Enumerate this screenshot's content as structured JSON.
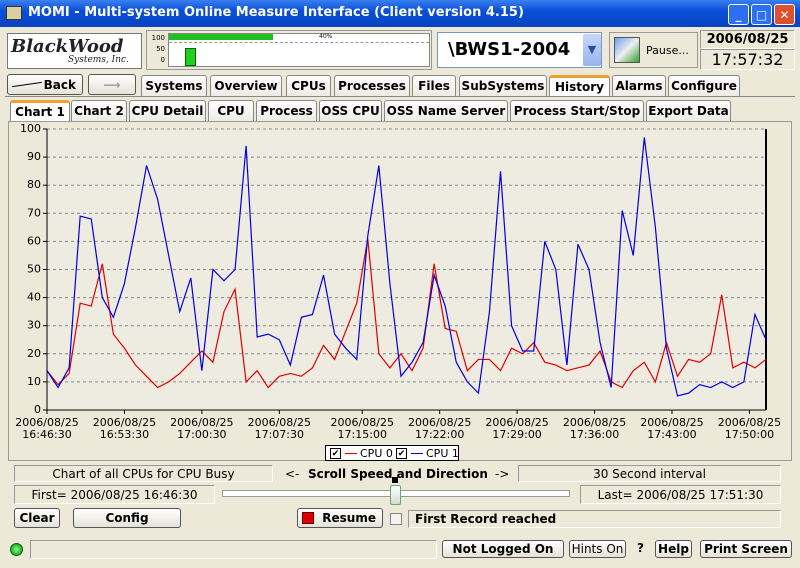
{
  "window": {
    "title": "MOMI - Multi-system Online Measure Interface (Client version 4.15)"
  },
  "header": {
    "logo": {
      "name": "BlackWood",
      "subtitle": "Systems, Inc."
    },
    "gauge": {
      "labels": [
        "100",
        "50",
        "0"
      ],
      "percent": "40%"
    },
    "node": "\\BWS1-2004",
    "pause": "Pause...",
    "date": "2006/08/25",
    "time": "17:57:32"
  },
  "nav": {
    "back": "Back",
    "tabs": [
      "Systems",
      "Overview",
      "CPUs",
      "Processes",
      "Files",
      "SubSystems",
      "History",
      "Alarms",
      "Configure"
    ],
    "active_tab": "History"
  },
  "subtabs": {
    "items": [
      "Chart 1",
      "Chart 2",
      "CPU Detail",
      "CPU",
      "Process",
      "OSS CPU",
      "OSS Name Server",
      "Process Start/Stop",
      "Export Data"
    ],
    "active": "Chart 1"
  },
  "chart_data": {
    "type": "line",
    "x": [
      "16:46:30",
      "16:47:30",
      "16:48:30",
      "16:49:30",
      "16:50:30",
      "16:51:30",
      "16:52:30",
      "16:53:30",
      "16:54:30",
      "16:55:30",
      "16:56:30",
      "16:57:30",
      "16:58:30",
      "16:59:30",
      "17:00:30",
      "17:01:30",
      "17:02:30",
      "17:03:30",
      "17:04:30",
      "17:05:30",
      "17:06:30",
      "17:07:30",
      "17:08:30",
      "17:09:30",
      "17:10:30",
      "17:11:30",
      "17:12:30",
      "17:13:30",
      "17:14:30",
      "17:15:30",
      "17:16:30",
      "17:17:30",
      "17:18:30",
      "17:19:30",
      "17:20:30",
      "17:21:30",
      "17:22:30",
      "17:23:30",
      "17:24:30",
      "17:25:30",
      "17:26:30",
      "17:27:30",
      "17:28:30",
      "17:29:30",
      "17:30:30",
      "17:31:30",
      "17:32:30",
      "17:33:30",
      "17:34:30",
      "17:35:30",
      "17:36:30",
      "17:37:30",
      "17:38:30",
      "17:39:30",
      "17:40:30",
      "17:41:30",
      "17:42:30",
      "17:43:30",
      "17:44:30",
      "17:45:30",
      "17:46:30",
      "17:47:30",
      "17:48:30",
      "17:49:30",
      "17:50:30",
      "17:51:30"
    ],
    "series": [
      {
        "name": "CPU 0",
        "color": "#e00000",
        "values": [
          14,
          9,
          13,
          38,
          37,
          52,
          27,
          22,
          16,
          12,
          8,
          10,
          13,
          17,
          21,
          17,
          35,
          43,
          10,
          14,
          8,
          12,
          13,
          12,
          15,
          23,
          18,
          28,
          38,
          61,
          20,
          15,
          20,
          14,
          22,
          52,
          29,
          28,
          14,
          18,
          18,
          14,
          22,
          20,
          24,
          17,
          16,
          14,
          15,
          16,
          21,
          10,
          8,
          14,
          17,
          10,
          24,
          12,
          18,
          17,
          20,
          41,
          15,
          17,
          15,
          18
        ]
      },
      {
        "name": "CPU 1",
        "color": "#0000e0",
        "values": [
          14,
          8,
          15,
          69,
          68,
          40,
          33,
          45,
          65,
          87,
          75,
          55,
          35,
          47,
          14,
          50,
          46,
          50,
          94,
          26,
          27,
          25,
          16,
          33,
          34,
          48,
          27,
          22,
          18,
          62,
          87,
          45,
          12,
          17,
          24,
          48,
          37,
          17,
          10,
          6,
          35,
          85,
          30,
          21,
          21,
          60,
          50,
          16,
          59,
          50,
          24,
          8,
          71,
          55,
          97,
          65,
          22,
          5,
          6,
          9,
          8,
          10,
          8,
          10,
          34,
          25
        ]
      }
    ],
    "xlim": [
      "16:46:30",
      "17:51:30"
    ],
    "xticks": [
      {
        "value": "16:46:30",
        "label": "2006/08/25 16:46:30"
      },
      {
        "value": "16:53:30",
        "label": "2006/08/25 16:53:30"
      },
      {
        "value": "17:00:30",
        "label": "2006/08/25 17:00:30"
      },
      {
        "value": "17:07:30",
        "label": "2006/08/25 17:07:30"
      },
      {
        "value": "17:15:00",
        "label": "2006/08/25 17:15:00"
      },
      {
        "value": "17:22:00",
        "label": "2006/08/25 17:22:00"
      },
      {
        "value": "17:29:00",
        "label": "2006/08/25 17:29:00"
      },
      {
        "value": "17:36:00",
        "label": "2006/08/25 17:36:00"
      },
      {
        "value": "17:43:00",
        "label": "2006/08/25 17:43:00"
      },
      {
        "value": "17:50:00",
        "label": "2006/08/25 17:50:00"
      }
    ],
    "ylim": [
      0,
      100
    ],
    "yticks": [
      0,
      10,
      20,
      30,
      40,
      50,
      60,
      70,
      80,
      90,
      100
    ],
    "grid": true
  },
  "controls": {
    "description": "Chart of all CPUs for CPU Busy",
    "scroll_left": "<-",
    "scroll_label": "Scroll Speed and Direction",
    "scroll_right": "->",
    "interval": "30 Second interval",
    "first": "First= 2006/08/25 16:46:30",
    "last": "Last= 2006/08/25 17:51:30",
    "clear": "Clear",
    "config": "Config",
    "resume": "Resume",
    "status_msg": "First Record reached"
  },
  "statusbar": {
    "login": "Not Logged On",
    "hints": "Hints On",
    "question": "?",
    "help": "Help",
    "print": "Print Screen"
  }
}
